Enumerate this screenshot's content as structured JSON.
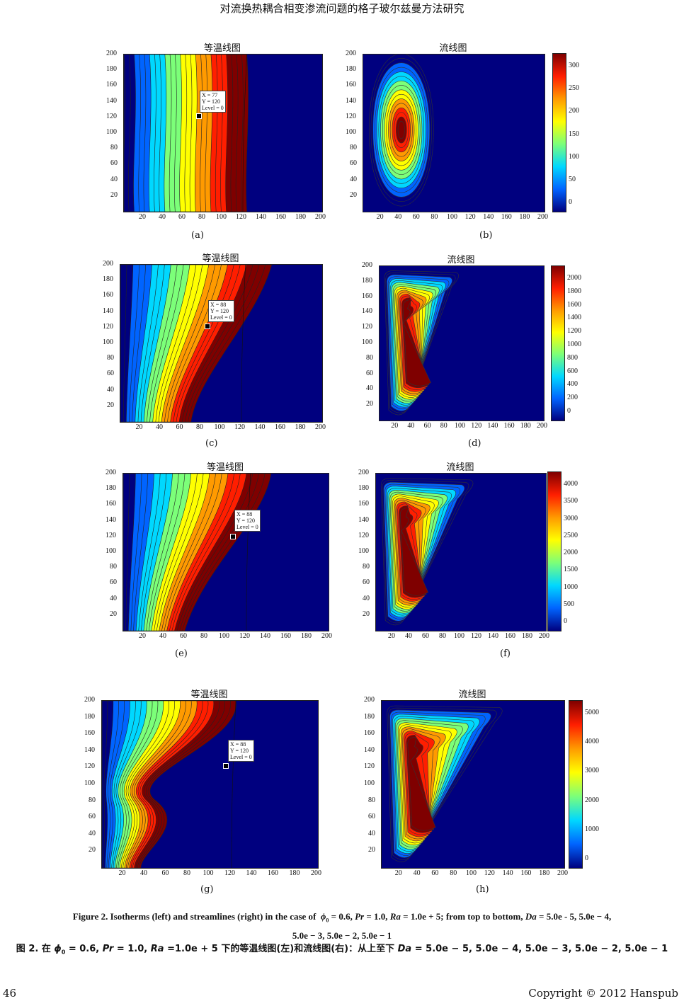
{
  "header": {
    "running_title": "对流换热耦合相变渗流问题的格子玻尔兹曼方法研究"
  },
  "colors": {
    "dark_red": "#7f0000",
    "red": "#ff1e00",
    "orange": "#ff9a00",
    "yellow": "#ffff00",
    "green": "#7cff79",
    "cyan": "#00d8ff",
    "blue": "#0064ff",
    "dark_blue": "#00007f"
  },
  "panels": [
    {
      "id": "a",
      "label": "(a)",
      "title": "等温线图",
      "kind": "isotherm",
      "x_ticks": [
        "20",
        "40",
        "60",
        "80",
        "100",
        "120",
        "140",
        "160",
        "180",
        "200"
      ],
      "y_ticks": [
        "200",
        "180",
        "160",
        "140",
        "120",
        "100",
        "80",
        "60",
        "40",
        "20"
      ],
      "datatip": {
        "x": "X = 77",
        "y": "Y = 120",
        "level": "Level = 0"
      }
    },
    {
      "id": "b",
      "label": "(b)",
      "title": "流线图",
      "kind": "stream",
      "x_ticks": [
        "20",
        "40",
        "60",
        "80",
        "100",
        "120",
        "140",
        "160",
        "180",
        "200"
      ],
      "y_ticks": [
        "200",
        "180",
        "160",
        "140",
        "120",
        "100",
        "80",
        "60",
        "40",
        "20"
      ],
      "colorbar": [
        "300",
        "250",
        "200",
        "150",
        "100",
        "50",
        "0"
      ]
    },
    {
      "id": "c",
      "label": "(c)",
      "title": "等温线图",
      "kind": "isotherm",
      "x_ticks": [
        "20",
        "40",
        "60",
        "80",
        "100",
        "120",
        "140",
        "160",
        "180",
        "200"
      ],
      "y_ticks": [
        "200",
        "180",
        "160",
        "140",
        "120",
        "100",
        "80",
        "60",
        "40",
        "20"
      ],
      "datatip": {
        "x": "X = 88",
        "y": "Y = 120",
        "level": "Level = 0"
      }
    },
    {
      "id": "d",
      "label": "(d)",
      "title": "流线图",
      "kind": "stream",
      "x_ticks": [
        "20",
        "40",
        "60",
        "80",
        "100",
        "120",
        "140",
        "160",
        "180",
        "200"
      ],
      "y_ticks": [
        "200",
        "180",
        "160",
        "140",
        "120",
        "100",
        "80",
        "60",
        "40",
        "20"
      ],
      "colorbar": [
        "2000",
        "1800",
        "1600",
        "1400",
        "1200",
        "1000",
        "800",
        "600",
        "400",
        "200",
        "0"
      ]
    },
    {
      "id": "e",
      "label": "(e)",
      "title": "等温线图",
      "kind": "isotherm",
      "x_ticks": [
        "20",
        "40",
        "60",
        "80",
        "100",
        "120",
        "140",
        "160",
        "180",
        "200"
      ],
      "y_ticks": [
        "200",
        "180",
        "160",
        "140",
        "120",
        "100",
        "80",
        "60",
        "40",
        "20"
      ],
      "datatip": {
        "x": "X = 88",
        "y": "Y = 120",
        "level": "Level = 0"
      }
    },
    {
      "id": "f",
      "label": "(f)",
      "title": "流线图",
      "kind": "stream",
      "x_ticks": [
        "20",
        "40",
        "60",
        "80",
        "100",
        "120",
        "140",
        "160",
        "180",
        "200"
      ],
      "y_ticks": [
        "200",
        "180",
        "160",
        "140",
        "120",
        "100",
        "80",
        "60",
        "40",
        "20"
      ],
      "colorbar": [
        "4000",
        "3500",
        "3000",
        "2500",
        "2000",
        "1500",
        "1000",
        "500",
        "0"
      ]
    },
    {
      "id": "g",
      "label": "(g)",
      "title": "等温线图",
      "kind": "isotherm",
      "x_ticks": [
        "20",
        "40",
        "60",
        "80",
        "100",
        "120",
        "140",
        "160",
        "180",
        "200"
      ],
      "y_ticks": [
        "200",
        "180",
        "160",
        "140",
        "120",
        "100",
        "80",
        "60",
        "40",
        "20"
      ],
      "datatip": {
        "x": "X = 88",
        "y": "Y = 120",
        "level": "Level = 0"
      }
    },
    {
      "id": "h",
      "label": "(h)",
      "title": "流线图",
      "kind": "stream",
      "x_ticks": [
        "20",
        "40",
        "60",
        "80",
        "100",
        "120",
        "140",
        "160",
        "180",
        "200"
      ],
      "y_ticks": [
        "200",
        "180",
        "160",
        "140",
        "120",
        "100",
        "80",
        "60",
        "40",
        "20"
      ],
      "colorbar": [
        "5000",
        "4000",
        "3000",
        "2000",
        "1000",
        "0"
      ]
    }
  ],
  "caption_en": {
    "prefix": "Figure 2. Isotherms (left) and streamlines (right) in the case of",
    "phi": "ϕ",
    "sub": "0",
    "rest1": " = 0.6, ",
    "pr": "Pr",
    "rest2": " = 1.0, ",
    "ra": "Ra",
    "rest3": " = 1.0e + 5; from top to bottom, ",
    "da": "Da",
    "rest4": " = 5.0e - 5, 5.0e − 4,",
    "line2": "5.0e − 3, 5.0e − 2, 5.0e − 1"
  },
  "caption_zh": {
    "prefix": "图 2.  在 ",
    "phi": "ϕ",
    "sub": "0",
    "rest1": " = 0.6, ",
    "pr": "Pr",
    "rest2": " = 1.0, ",
    "ra": "Ra",
    "rest3": " =1.0e + 5 下的等温线图(左)和流线图(右)：从上至下 ",
    "da": "Da",
    "rest4": " = 5.0e − 5, 5.0e − 4, 5.0e − 3, 5.0e − 2, 5.0e − 1"
  },
  "footer": {
    "page_number": "46",
    "copyright": "Copyright © 2012 Hanspub"
  }
}
